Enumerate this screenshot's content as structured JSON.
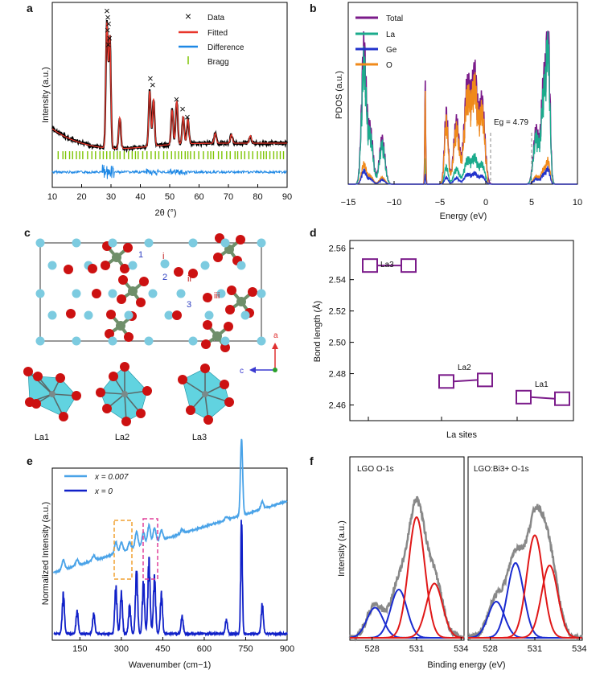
{
  "figure": {
    "panels": {
      "a": "a",
      "b": "b",
      "c": "c",
      "d": "d",
      "e": "e",
      "f": "f"
    },
    "crystal": {
      "labels": [
        "La1",
        "La2",
        "La3"
      ],
      "site_numbers": [
        "1",
        "2",
        "3"
      ],
      "roman_labels": [
        "i",
        "ii",
        "iii"
      ],
      "axes": [
        "a",
        "c"
      ],
      "colors": {
        "la": "#7ccbe0",
        "o": "#cc1111",
        "ge": "#6f8f6a",
        "poly": "#2cc4d6"
      }
    }
  },
  "chart_data": [
    {
      "panel": "a",
      "type": "line",
      "xlabel": "2θ (°)",
      "ylabel": "Intensity (a.u.)",
      "xlim": [
        10,
        90
      ],
      "xticks": [
        "10",
        "20",
        "30",
        "40",
        "50",
        "60",
        "70",
        "80",
        "90"
      ],
      "legend": [
        "Data",
        "Fitted",
        "Difference",
        "Bragg"
      ],
      "legend_position": "top-right",
      "colors": {
        "Data": "#000000",
        "Fitted": "#e8362b",
        "Difference": "#1e88e5",
        "Bragg": "#7cc400"
      },
      "peaks": [
        {
          "x": 28.6,
          "height": 1.0
        },
        {
          "x": 29.6,
          "height": 0.9
        },
        {
          "x": 33.0,
          "height": 0.25
        },
        {
          "x": 43.2,
          "height": 0.45
        },
        {
          "x": 44.5,
          "height": 0.38
        },
        {
          "x": 50.8,
          "height": 0.28
        },
        {
          "x": 52.4,
          "height": 0.35
        },
        {
          "x": 54.6,
          "height": 0.22
        },
        {
          "x": 56.2,
          "height": 0.2
        },
        {
          "x": 65.5,
          "height": 0.08
        },
        {
          "x": 71.0,
          "height": 0.07
        },
        {
          "x": 77.5,
          "height": 0.06
        }
      ]
    },
    {
      "panel": "b",
      "type": "area",
      "xlabel": "Energy (eV)",
      "ylabel": "PDOS (a.u.)",
      "xlim": [
        -15,
        10
      ],
      "xticks": [
        "−15",
        "−10",
        "−5",
        "0",
        "5",
        "10"
      ],
      "legend": [
        "Total",
        "La",
        "Ge",
        "O"
      ],
      "legend_position": "top-left",
      "colors": {
        "Total": "#7b1b8a",
        "La": "#1bab8c",
        "Ge": "#2233cc",
        "O": "#f08a1a"
      },
      "annotation": "Eg = 4.79",
      "gap": [
        0,
        4.79
      ]
    },
    {
      "panel": "d",
      "type": "scatter",
      "xlabel": "La sites",
      "ylabel": "Bond length (Å)",
      "ylim": [
        2.45,
        2.565
      ],
      "yticks": [
        "2.46",
        "2.48",
        "2.50",
        "2.52",
        "2.54",
        "2.56"
      ],
      "series": [
        {
          "name": "La3",
          "values": [
            2.549,
            2.549
          ]
        },
        {
          "name": "La2",
          "values": [
            2.475,
            2.476
          ]
        },
        {
          "name": "La1",
          "values": [
            2.465,
            2.464
          ]
        }
      ],
      "color": "#7b1b8a"
    },
    {
      "panel": "e",
      "type": "line",
      "xlabel": "Wavenumber (cm−1)",
      "ylabel": "Normalized Intensity (a.u.)",
      "xlim": [
        50,
        900
      ],
      "xticks": [
        "150",
        "300",
        "450",
        "600",
        "750",
        "900"
      ],
      "series": [
        {
          "name": "x = 0.007",
          "color": "#4aa3e8"
        },
        {
          "name": "x = 0",
          "color": "#1020c8"
        }
      ],
      "legend_position": "top-left",
      "peaks": [
        {
          "x": 90,
          "h": 0.35
        },
        {
          "x": 140,
          "h": 0.2
        },
        {
          "x": 200,
          "h": 0.18
        },
        {
          "x": 280,
          "h": 0.4
        },
        {
          "x": 300,
          "h": 0.35
        },
        {
          "x": 330,
          "h": 0.25
        },
        {
          "x": 355,
          "h": 0.55
        },
        {
          "x": 380,
          "h": 0.45
        },
        {
          "x": 400,
          "h": 0.65
        },
        {
          "x": 420,
          "h": 0.5
        },
        {
          "x": 445,
          "h": 0.35
        },
        {
          "x": 520,
          "h": 0.15
        },
        {
          "x": 680,
          "h": 0.12
        },
        {
          "x": 735,
          "h": 1.0
        },
        {
          "x": 810,
          "h": 0.25
        }
      ],
      "boxes": [
        [
          280,
          330
        ],
        [
          370,
          415
        ]
      ]
    },
    {
      "panel": "f",
      "type": "line",
      "xlabel": "Binding energy (eV)",
      "ylabel": "Intensity (a.u.)",
      "subplots": [
        {
          "title": "LGO O-1s",
          "xticks": [
            "528",
            "531",
            "534"
          ],
          "components": [
            {
              "center": 528.2,
              "height": 0.25,
              "color": "#1a2bd0"
            },
            {
              "center": 529.8,
              "height": 0.4,
              "color": "#1a2bd0"
            },
            {
              "center": 531.0,
              "height": 1.0,
              "color": "#e01818"
            },
            {
              "center": 532.2,
              "height": 0.45,
              "color": "#e01818"
            }
          ]
        },
        {
          "title": "LGO:Bi3+ O-1s",
          "xticks": [
            "528",
            "531",
            "534"
          ],
          "components": [
            {
              "center": 528.4,
              "height": 0.3,
              "color": "#1a2bd0"
            },
            {
              "center": 529.7,
              "height": 0.62,
              "color": "#1a2bd0"
            },
            {
              "center": 531.0,
              "height": 0.85,
              "color": "#e01818"
            },
            {
              "center": 532.0,
              "height": 0.6,
              "color": "#e01818"
            }
          ]
        }
      ],
      "envelope_color": "#888888"
    }
  ]
}
